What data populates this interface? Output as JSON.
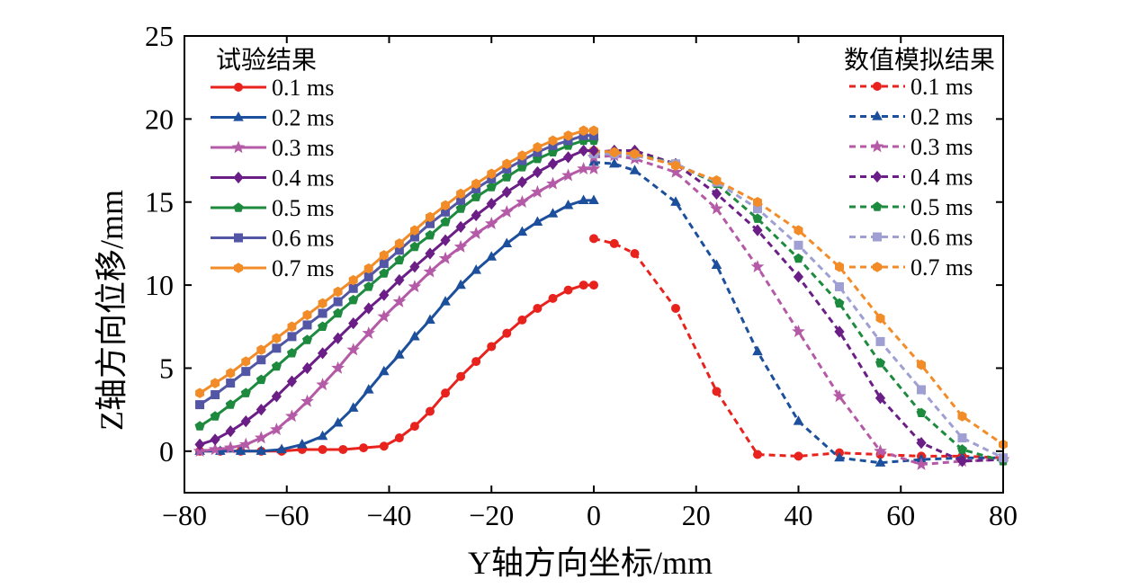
{
  "chart_data": {
    "type": "line",
    "xlabel": "Y轴方向坐标/mm",
    "ylabel": "Z轴方向位移/mm",
    "xlim": [
      -80,
      80
    ],
    "ylim": [
      -2.5,
      25
    ],
    "xticks": [
      "−80",
      "−60",
      "−40",
      "−20",
      "0",
      "20",
      "40",
      "60",
      "80"
    ],
    "yticks": [
      "0",
      "5",
      "10",
      "15",
      "20",
      "25"
    ],
    "legend_left": {
      "title": "试验结果",
      "placement": "top-left"
    },
    "legend_right": {
      "title": "数值模拟结果",
      "placement": "top-right"
    },
    "series_exp": [
      {
        "name": "0.1 ms",
        "color": "#e8231e",
        "marker": "circle",
        "points": [
          [
            -77,
            0
          ],
          [
            -73,
            0
          ],
          [
            -69,
            0
          ],
          [
            -65,
            0
          ],
          [
            -61,
            0
          ],
          [
            -57,
            0.1
          ],
          [
            -53,
            0.1
          ],
          [
            -49,
            0.1
          ],
          [
            -45,
            0.2
          ],
          [
            -41,
            0.3
          ],
          [
            -38,
            0.8
          ],
          [
            -35,
            1.5
          ],
          [
            -32,
            2.4
          ],
          [
            -29,
            3.5
          ],
          [
            -26,
            4.5
          ],
          [
            -23,
            5.4
          ],
          [
            -20,
            6.3
          ],
          [
            -17,
            7.1
          ],
          [
            -14,
            7.9
          ],
          [
            -11,
            8.6
          ],
          [
            -8,
            9.2
          ],
          [
            -5,
            9.7
          ],
          [
            -2,
            10.0
          ],
          [
            0,
            10.0
          ]
        ]
      },
      {
        "name": "0.2 ms",
        "color": "#1c4f9c",
        "marker": "triangle",
        "points": [
          [
            -77,
            0
          ],
          [
            -73,
            0
          ],
          [
            -69,
            0
          ],
          [
            -65,
            0
          ],
          [
            -61,
            0.1
          ],
          [
            -57,
            0.4
          ],
          [
            -53,
            0.9
          ],
          [
            -50,
            1.7
          ],
          [
            -47,
            2.6
          ],
          [
            -44,
            3.7
          ],
          [
            -41,
            4.8
          ],
          [
            -38,
            5.8
          ],
          [
            -35,
            6.9
          ],
          [
            -32,
            7.9
          ],
          [
            -29,
            9.0
          ],
          [
            -26,
            10.0
          ],
          [
            -23,
            10.9
          ],
          [
            -20,
            11.7
          ],
          [
            -17,
            12.5
          ],
          [
            -14,
            13.2
          ],
          [
            -11,
            13.8
          ],
          [
            -8,
            14.3
          ],
          [
            -5,
            14.8
          ],
          [
            -2,
            15.1
          ],
          [
            0,
            15.1
          ]
        ]
      },
      {
        "name": "0.3 ms",
        "color": "#b45aa6",
        "marker": "star",
        "points": [
          [
            -77,
            0
          ],
          [
            -74,
            0.1
          ],
          [
            -71,
            0.2
          ],
          [
            -68,
            0.4
          ],
          [
            -65,
            0.8
          ],
          [
            -62,
            1.3
          ],
          [
            -59,
            2.1
          ],
          [
            -56,
            3.0
          ],
          [
            -53,
            4.0
          ],
          [
            -50,
            5.0
          ],
          [
            -47,
            6.1
          ],
          [
            -44,
            7.1
          ],
          [
            -41,
            8.1
          ],
          [
            -38,
            9.0
          ],
          [
            -35,
            9.9
          ],
          [
            -32,
            10.8
          ],
          [
            -29,
            11.6
          ],
          [
            -26,
            12.3
          ],
          [
            -23,
            13.1
          ],
          [
            -20,
            13.7
          ],
          [
            -17,
            14.4
          ],
          [
            -14,
            15.0
          ],
          [
            -11,
            15.6
          ],
          [
            -8,
            16.1
          ],
          [
            -5,
            16.6
          ],
          [
            -2,
            17.0
          ],
          [
            0,
            17.0
          ]
        ]
      },
      {
        "name": "0.4 ms",
        "color": "#6a1e86",
        "marker": "diamond",
        "points": [
          [
            -77,
            0.4
          ],
          [
            -74,
            0.7
          ],
          [
            -71,
            1.2
          ],
          [
            -68,
            1.8
          ],
          [
            -65,
            2.5
          ],
          [
            -62,
            3.3
          ],
          [
            -59,
            4.2
          ],
          [
            -56,
            5.0
          ],
          [
            -53,
            5.9
          ],
          [
            -50,
            6.8
          ],
          [
            -47,
            7.7
          ],
          [
            -44,
            8.6
          ],
          [
            -41,
            9.4
          ],
          [
            -38,
            10.3
          ],
          [
            -35,
            11.1
          ],
          [
            -32,
            11.9
          ],
          [
            -29,
            12.7
          ],
          [
            -26,
            13.5
          ],
          [
            -23,
            14.2
          ],
          [
            -20,
            14.9
          ],
          [
            -17,
            15.6
          ],
          [
            -14,
            16.2
          ],
          [
            -11,
            16.8
          ],
          [
            -8,
            17.3
          ],
          [
            -5,
            17.7
          ],
          [
            -2,
            18.1
          ],
          [
            0,
            18.1
          ]
        ]
      },
      {
        "name": "0.5 ms",
        "color": "#1d8a3e",
        "marker": "pentagon",
        "points": [
          [
            -77,
            1.5
          ],
          [
            -74,
            2.1
          ],
          [
            -71,
            2.8
          ],
          [
            -68,
            3.5
          ],
          [
            -65,
            4.3
          ],
          [
            -62,
            5.1
          ],
          [
            -59,
            5.9
          ],
          [
            -56,
            6.7
          ],
          [
            -53,
            7.5
          ],
          [
            -50,
            8.3
          ],
          [
            -47,
            9.1
          ],
          [
            -44,
            9.9
          ],
          [
            -41,
            10.7
          ],
          [
            -38,
            11.5
          ],
          [
            -35,
            12.3
          ],
          [
            -32,
            13.0
          ],
          [
            -29,
            13.8
          ],
          [
            -26,
            14.6
          ],
          [
            -23,
            15.3
          ],
          [
            -20,
            15.9
          ],
          [
            -17,
            16.5
          ],
          [
            -14,
            17.1
          ],
          [
            -11,
            17.6
          ],
          [
            -8,
            18.0
          ],
          [
            -5,
            18.4
          ],
          [
            -2,
            18.7
          ],
          [
            0,
            18.7
          ]
        ]
      },
      {
        "name": "0.6 ms",
        "color": "#5256a5",
        "marker": "x",
        "points": [
          [
            -77,
            2.8
          ],
          [
            -74,
            3.4
          ],
          [
            -71,
            4.1
          ],
          [
            -68,
            4.8
          ],
          [
            -65,
            5.5
          ],
          [
            -62,
            6.2
          ],
          [
            -59,
            6.9
          ],
          [
            -56,
            7.6
          ],
          [
            -53,
            8.3
          ],
          [
            -50,
            9.0
          ],
          [
            -47,
            9.8
          ],
          [
            -44,
            10.5
          ],
          [
            -41,
            11.3
          ],
          [
            -38,
            12.1
          ],
          [
            -35,
            12.9
          ],
          [
            -32,
            13.7
          ],
          [
            -29,
            14.4
          ],
          [
            -26,
            15.1
          ],
          [
            -23,
            15.8
          ],
          [
            -20,
            16.4
          ],
          [
            -17,
            17.0
          ],
          [
            -14,
            17.5
          ],
          [
            -11,
            18.0
          ],
          [
            -8,
            18.4
          ],
          [
            -5,
            18.7
          ],
          [
            -2,
            19.0
          ],
          [
            0,
            19.0
          ]
        ]
      },
      {
        "name": "0.7 ms",
        "color": "#f28c28",
        "marker": "hexagon",
        "points": [
          [
            -77,
            3.5
          ],
          [
            -74,
            4.1
          ],
          [
            -71,
            4.7
          ],
          [
            -68,
            5.4
          ],
          [
            -65,
            6.1
          ],
          [
            -62,
            6.8
          ],
          [
            -59,
            7.5
          ],
          [
            -56,
            8.2
          ],
          [
            -53,
            8.9
          ],
          [
            -50,
            9.6
          ],
          [
            -47,
            10.3
          ],
          [
            -44,
            11.0
          ],
          [
            -41,
            11.8
          ],
          [
            -38,
            12.5
          ],
          [
            -35,
            13.3
          ],
          [
            -32,
            14.1
          ],
          [
            -29,
            14.8
          ],
          [
            -26,
            15.5
          ],
          [
            -23,
            16.1
          ],
          [
            -20,
            16.7
          ],
          [
            -17,
            17.3
          ],
          [
            -14,
            17.8
          ],
          [
            -11,
            18.3
          ],
          [
            -8,
            18.7
          ],
          [
            -5,
            19.0
          ],
          [
            -2,
            19.3
          ],
          [
            0,
            19.3
          ]
        ]
      }
    ],
    "series_sim": [
      {
        "name": "0.1 ms",
        "color": "#e8231e",
        "marker": "circle",
        "points": [
          [
            0,
            12.8
          ],
          [
            4,
            12.5
          ],
          [
            8,
            11.9
          ],
          [
            16,
            8.6
          ],
          [
            24,
            3.6
          ],
          [
            32,
            -0.2
          ],
          [
            40,
            -0.3
          ],
          [
            48,
            -0.1
          ],
          [
            56,
            -0.2
          ],
          [
            64,
            -0.3
          ],
          [
            72,
            -0.3
          ],
          [
            80,
            -0.4
          ]
        ]
      },
      {
        "name": "0.2 ms",
        "color": "#1c4f9c",
        "marker": "triangle",
        "points": [
          [
            0,
            17.4
          ],
          [
            4,
            17.3
          ],
          [
            8,
            16.9
          ],
          [
            16,
            15.0
          ],
          [
            24,
            11.2
          ],
          [
            32,
            6.0
          ],
          [
            40,
            1.8
          ],
          [
            48,
            -0.4
          ],
          [
            56,
            -0.7
          ],
          [
            64,
            -0.5
          ],
          [
            72,
            -0.4
          ],
          [
            80,
            -0.4
          ]
        ]
      },
      {
        "name": "0.3 ms",
        "color": "#b45aa6",
        "marker": "star",
        "points": [
          [
            0,
            17.7
          ],
          [
            4,
            17.8
          ],
          [
            8,
            17.6
          ],
          [
            16,
            16.8
          ],
          [
            24,
            14.6
          ],
          [
            32,
            11.1
          ],
          [
            40,
            7.2
          ],
          [
            48,
            3.3
          ],
          [
            56,
            0
          ],
          [
            64,
            -0.8
          ],
          [
            72,
            -0.6
          ],
          [
            80,
            -0.5
          ]
        ]
      },
      {
        "name": "0.4 ms",
        "color": "#6a1e86",
        "marker": "diamond",
        "points": [
          [
            0,
            18.0
          ],
          [
            4,
            18.1
          ],
          [
            8,
            18.1
          ],
          [
            16,
            17.3
          ],
          [
            24,
            15.5
          ],
          [
            32,
            13.3
          ],
          [
            40,
            10.5
          ],
          [
            48,
            7.2
          ],
          [
            56,
            3.2
          ],
          [
            64,
            0.5
          ],
          [
            72,
            -0.6
          ],
          [
            80,
            -0.5
          ]
        ]
      },
      {
        "name": "0.5 ms",
        "color": "#1d8a3e",
        "marker": "pentagon",
        "points": [
          [
            0,
            18.0
          ],
          [
            4,
            18.0
          ],
          [
            8,
            17.9
          ],
          [
            16,
            17.3
          ],
          [
            24,
            16.1
          ],
          [
            32,
            14.0
          ],
          [
            40,
            11.6
          ],
          [
            48,
            8.9
          ],
          [
            56,
            5.3
          ],
          [
            64,
            2.3
          ],
          [
            72,
            0.1
          ],
          [
            80,
            -0.6
          ]
        ]
      },
      {
        "name": "0.6 ms",
        "color": "#9f9fd3",
        "marker": "x",
        "points": [
          [
            0,
            17.9
          ],
          [
            4,
            17.9
          ],
          [
            8,
            17.8
          ],
          [
            16,
            17.3
          ],
          [
            24,
            16.2
          ],
          [
            32,
            14.6
          ],
          [
            40,
            12.4
          ],
          [
            48,
            9.9
          ],
          [
            56,
            6.6
          ],
          [
            64,
            3.7
          ],
          [
            72,
            0.8
          ],
          [
            80,
            -0.4
          ]
        ]
      },
      {
        "name": "0.7 ms",
        "color": "#f28c28",
        "marker": "hexagon",
        "points": [
          [
            0,
            18.1
          ],
          [
            4,
            18.0
          ],
          [
            8,
            17.9
          ],
          [
            16,
            17.2
          ],
          [
            24,
            16.3
          ],
          [
            32,
            15.0
          ],
          [
            40,
            13.3
          ],
          [
            48,
            11.1
          ],
          [
            56,
            8.0
          ],
          [
            64,
            5.2
          ],
          [
            72,
            2.1
          ],
          [
            80,
            0.4
          ]
        ]
      }
    ]
  }
}
